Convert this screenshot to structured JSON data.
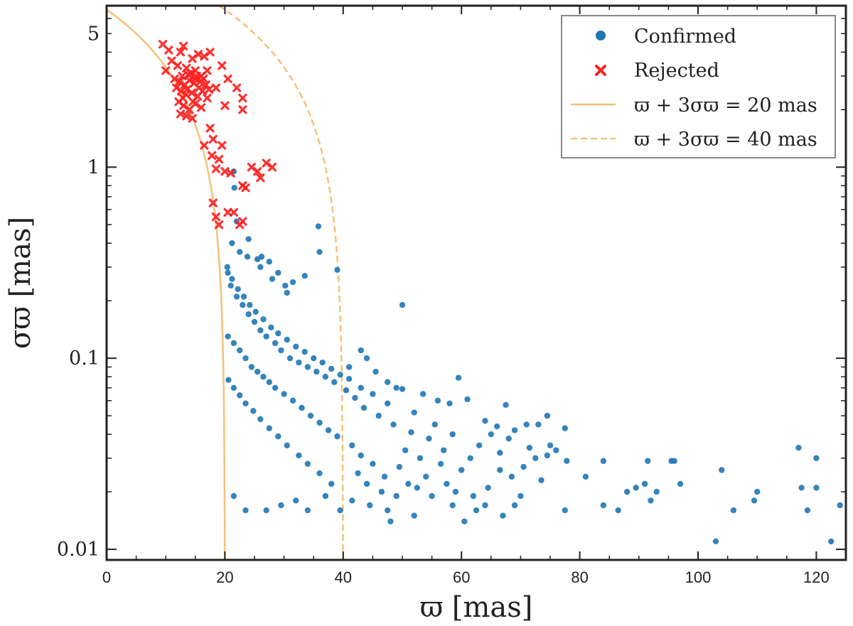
{
  "chart_data": {
    "type": "scatter",
    "title": "",
    "xlabel": "ϖ [mas]",
    "ylabel": "σϖ [mas]",
    "xlim": [
      0,
      125
    ],
    "ylim": [
      0.0088,
      7.0
    ],
    "yscale": "log",
    "x_ticks": [
      0,
      20,
      40,
      60,
      80,
      100,
      120
    ],
    "x_tick_labels": [
      "0",
      "20",
      "40",
      "60",
      "80",
      "100",
      "120"
    ],
    "y_ticks": [
      5,
      1,
      0.1,
      0.01
    ],
    "y_tick_labels": [
      "5",
      "1",
      "0.1",
      "0.01"
    ],
    "legend_position": "top-right",
    "colors": {
      "confirmed": "#1f77b4",
      "rejected": "#ff2020",
      "curve": "#f5c07a"
    },
    "series": [
      {
        "name": "Confirmed",
        "kind": "points",
        "marker": "circle",
        "legend_label": "Confirmed",
        "points": [
          [
            21.5,
            0.95
          ],
          [
            21.6,
            0.78
          ],
          [
            22.0,
            0.52
          ],
          [
            24.0,
            0.42
          ],
          [
            21.2,
            0.4
          ],
          [
            22.5,
            0.36
          ],
          [
            23.8,
            0.34
          ],
          [
            25.5,
            0.33
          ],
          [
            26.2,
            0.34
          ],
          [
            27.5,
            0.32
          ],
          [
            35.8,
            0.49
          ],
          [
            36.0,
            0.36
          ],
          [
            39.0,
            0.29
          ],
          [
            33.5,
            0.27
          ],
          [
            30.2,
            0.24
          ],
          [
            30.5,
            0.22
          ],
          [
            28.0,
            0.26
          ],
          [
            31.5,
            0.25
          ],
          [
            50.0,
            0.19
          ],
          [
            26.0,
            0.3
          ],
          [
            29.0,
            0.28
          ],
          [
            43.0,
            0.11
          ],
          [
            44.0,
            0.1
          ],
          [
            41.0,
            0.09
          ],
          [
            45.5,
            0.085
          ],
          [
            47.5,
            0.075
          ],
          [
            49.0,
            0.07
          ],
          [
            50.0,
            0.069
          ],
          [
            53.5,
            0.065
          ],
          [
            56.0,
            0.06
          ],
          [
            59.5,
            0.079
          ],
          [
            58.0,
            0.058
          ],
          [
            61.0,
            0.061
          ],
          [
            64.0,
            0.047
          ],
          [
            67.5,
            0.057
          ],
          [
            66.0,
            0.044
          ],
          [
            69.0,
            0.042
          ],
          [
            71.0,
            0.045
          ],
          [
            73.0,
            0.045
          ],
          [
            74.5,
            0.05
          ],
          [
            75.0,
            0.035
          ],
          [
            77.5,
            0.043
          ],
          [
            76.0,
            0.033
          ],
          [
            77.8,
            0.029
          ],
          [
            74.5,
            0.031
          ],
          [
            73.5,
            0.023
          ],
          [
            81.0,
            0.024
          ],
          [
            84.0,
            0.029
          ],
          [
            86.5,
            0.016
          ],
          [
            84.0,
            0.017
          ],
          [
            89.5,
            0.021
          ],
          [
            91.0,
            0.022
          ],
          [
            93.0,
            0.02
          ],
          [
            95.5,
            0.029
          ],
          [
            96.0,
            0.029
          ],
          [
            97.0,
            0.022
          ],
          [
            91.5,
            0.029
          ],
          [
            104.0,
            0.026
          ],
          [
            103.0,
            0.011
          ],
          [
            106.0,
            0.016
          ],
          [
            109.5,
            0.018
          ],
          [
            110.0,
            0.02
          ],
          [
            117.0,
            0.034
          ],
          [
            120.0,
            0.03
          ],
          [
            117.5,
            0.021
          ],
          [
            120.0,
            0.021
          ],
          [
            118.5,
            0.016
          ],
          [
            122.5,
            0.011
          ],
          [
            124.0,
            0.017
          ],
          [
            92.0,
            0.018
          ],
          [
            88.0,
            0.02
          ],
          [
            77.5,
            0.016
          ],
          [
            70.0,
            0.019
          ],
          [
            68.5,
            0.024
          ],
          [
            66.5,
            0.026
          ],
          [
            64.5,
            0.021
          ],
          [
            62.5,
            0.016
          ],
          [
            60.5,
            0.014
          ],
          [
            58.5,
            0.017
          ],
          [
            55.0,
            0.019
          ],
          [
            52.5,
            0.021
          ],
          [
            52.0,
            0.015
          ],
          [
            48.0,
            0.014
          ],
          [
            47.5,
            0.016
          ],
          [
            44.5,
            0.017
          ],
          [
            41.5,
            0.018
          ],
          [
            39.5,
            0.016
          ],
          [
            37.0,
            0.019
          ],
          [
            34.0,
            0.016
          ],
          [
            32.0,
            0.018
          ],
          [
            29.5,
            0.017
          ],
          [
            27.0,
            0.016
          ],
          [
            23.5,
            0.016
          ],
          [
            21.5,
            0.019
          ],
          [
            63.0,
            0.035
          ],
          [
            61.5,
            0.03
          ],
          [
            57.0,
            0.033
          ],
          [
            54.5,
            0.038
          ],
          [
            51.5,
            0.041
          ],
          [
            48.5,
            0.045
          ],
          [
            46.0,
            0.05
          ],
          [
            43.5,
            0.055
          ],
          [
            42.0,
            0.062
          ],
          [
            40.5,
            0.068
          ],
          [
            38.5,
            0.075
          ],
          [
            37.0,
            0.08
          ],
          [
            35.5,
            0.085
          ],
          [
            34.0,
            0.09
          ],
          [
            32.5,
            0.095
          ],
          [
            31.0,
            0.1
          ],
          [
            29.5,
            0.11
          ],
          [
            28.5,
            0.12
          ],
          [
            27.0,
            0.13
          ],
          [
            26.0,
            0.14
          ],
          [
            25.0,
            0.155
          ],
          [
            24.0,
            0.17
          ],
          [
            23.0,
            0.19
          ],
          [
            22.0,
            0.21
          ],
          [
            21.0,
            0.24
          ],
          [
            20.5,
            0.28
          ],
          [
            65.0,
            0.04
          ],
          [
            68.0,
            0.038
          ],
          [
            71.5,
            0.034
          ],
          [
            70.5,
            0.027
          ],
          [
            72.5,
            0.03
          ],
          [
            66.5,
            0.032
          ],
          [
            60.0,
            0.026
          ],
          [
            56.5,
            0.028
          ],
          [
            53.0,
            0.03
          ],
          [
            50.5,
            0.033
          ],
          [
            49.5,
            0.027
          ],
          [
            47.0,
            0.024
          ],
          [
            45.0,
            0.028
          ],
          [
            43.0,
            0.031
          ],
          [
            41.5,
            0.035
          ],
          [
            39.0,
            0.039
          ],
          [
            37.5,
            0.042
          ],
          [
            36.0,
            0.046
          ],
          [
            34.5,
            0.05
          ],
          [
            33.0,
            0.055
          ],
          [
            31.5,
            0.06
          ],
          [
            30.0,
            0.065
          ],
          [
            28.5,
            0.07
          ],
          [
            27.5,
            0.075
          ],
          [
            26.5,
            0.08
          ],
          [
            25.5,
            0.085
          ],
          [
            24.5,
            0.09
          ],
          [
            23.5,
            0.1
          ],
          [
            22.5,
            0.11
          ],
          [
            21.5,
            0.12
          ],
          [
            20.5,
            0.13
          ],
          [
            38.0,
            0.022
          ],
          [
            36.0,
            0.025
          ],
          [
            34.0,
            0.028
          ],
          [
            32.5,
            0.031
          ],
          [
            30.5,
            0.035
          ],
          [
            29.0,
            0.039
          ],
          [
            27.5,
            0.043
          ],
          [
            26.0,
            0.048
          ],
          [
            24.8,
            0.053
          ],
          [
            23.5,
            0.058
          ],
          [
            22.5,
            0.064
          ],
          [
            21.5,
            0.07
          ],
          [
            20.6,
            0.077
          ],
          [
            42.5,
            0.025
          ],
          [
            44.0,
            0.022
          ],
          [
            46.5,
            0.02
          ],
          [
            49.0,
            0.019
          ],
          [
            51.0,
            0.022
          ],
          [
            54.0,
            0.024
          ],
          [
            57.5,
            0.022
          ],
          [
            59.0,
            0.02
          ],
          [
            62.0,
            0.019
          ],
          [
            64.0,
            0.017
          ],
          [
            67.0,
            0.015
          ],
          [
            69.0,
            0.017
          ],
          [
            55.5,
            0.045
          ],
          [
            58.5,
            0.04
          ],
          [
            52.0,
            0.052
          ],
          [
            47.5,
            0.058
          ],
          [
            45.0,
            0.065
          ],
          [
            43.0,
            0.07
          ],
          [
            41.0,
            0.078
          ],
          [
            39.5,
            0.082
          ],
          [
            38.0,
            0.088
          ],
          [
            36.5,
            0.095
          ],
          [
            35.0,
            0.1
          ],
          [
            33.5,
            0.108
          ],
          [
            32.0,
            0.115
          ],
          [
            30.5,
            0.125
          ],
          [
            29.0,
            0.135
          ],
          [
            27.8,
            0.145
          ],
          [
            26.5,
            0.16
          ],
          [
            25.2,
            0.175
          ],
          [
            24.2,
            0.19
          ],
          [
            23.2,
            0.21
          ],
          [
            22.2,
            0.23
          ],
          [
            21.2,
            0.26
          ],
          [
            20.4,
            0.3
          ]
        ]
      },
      {
        "name": "Rejected",
        "kind": "points",
        "marker": "x",
        "legend_label": "Rejected",
        "points": [
          [
            9.5,
            4.4
          ],
          [
            10.5,
            4.1
          ],
          [
            12.5,
            4.0
          ],
          [
            13.0,
            4.3
          ],
          [
            14.5,
            3.7
          ],
          [
            15.5,
            3.9
          ],
          [
            16.5,
            3.8
          ],
          [
            17.5,
            4.0
          ],
          [
            11.0,
            3.6
          ],
          [
            12.0,
            3.4
          ],
          [
            13.5,
            3.3
          ],
          [
            14.2,
            3.1
          ],
          [
            15.0,
            3.2
          ],
          [
            16.0,
            3.0
          ],
          [
            17.0,
            3.2
          ],
          [
            10.0,
            3.2
          ],
          [
            11.5,
            2.9
          ],
          [
            12.3,
            2.8
          ],
          [
            13.2,
            2.7
          ],
          [
            14.0,
            2.85
          ],
          [
            14.8,
            2.75
          ],
          [
            15.6,
            2.6
          ],
          [
            16.4,
            2.9
          ],
          [
            12.8,
            3.0
          ],
          [
            13.8,
            3.05
          ],
          [
            15.2,
            3.0
          ],
          [
            11.8,
            2.6
          ],
          [
            12.6,
            2.5
          ],
          [
            13.4,
            2.4
          ],
          [
            14.4,
            2.45
          ],
          [
            15.4,
            2.35
          ],
          [
            16.2,
            2.5
          ],
          [
            12.2,
            2.2
          ],
          [
            13.0,
            2.1
          ],
          [
            14.0,
            2.0
          ],
          [
            15.0,
            2.15
          ],
          [
            16.0,
            2.05
          ],
          [
            17.0,
            2.3
          ],
          [
            12.5,
            1.9
          ],
          [
            13.5,
            1.85
          ],
          [
            14.5,
            1.8
          ],
          [
            20.5,
            2.9
          ],
          [
            22.0,
            2.6
          ],
          [
            23.0,
            2.3
          ],
          [
            23.0,
            2.0
          ],
          [
            20.0,
            2.1
          ],
          [
            17.5,
            1.6
          ],
          [
            18.0,
            1.4
          ],
          [
            19.5,
            1.3
          ],
          [
            16.5,
            1.3
          ],
          [
            17.8,
            1.15
          ],
          [
            19.0,
            1.1
          ],
          [
            18.5,
            0.98
          ],
          [
            20.0,
            0.95
          ],
          [
            21.0,
            0.93
          ],
          [
            24.5,
            1.0
          ],
          [
            25.5,
            0.95
          ],
          [
            27.0,
            1.05
          ],
          [
            28.0,
            1.0
          ],
          [
            26.0,
            0.88
          ],
          [
            23.5,
            0.78
          ],
          [
            23.0,
            0.8
          ],
          [
            20.5,
            0.58
          ],
          [
            21.5,
            0.58
          ],
          [
            22.5,
            0.5
          ],
          [
            23.0,
            0.52
          ],
          [
            18.5,
            0.55
          ],
          [
            19.0,
            0.5
          ],
          [
            18.0,
            0.65
          ],
          [
            15.0,
            2.9
          ],
          [
            16.8,
            2.7
          ],
          [
            14.6,
            2.2
          ],
          [
            13.6,
            2.55
          ],
          [
            12.9,
            2.3
          ],
          [
            15.8,
            2.8
          ],
          [
            17.3,
            2.55
          ],
          [
            18.5,
            2.6
          ],
          [
            19.5,
            3.4
          ]
        ]
      },
      {
        "name": "ϖ + 3σϖ = 20 mas",
        "kind": "curve",
        "style": "solid",
        "total": 20,
        "legend_label": "ϖ + 3σϖ = 20 mas"
      },
      {
        "name": "ϖ + 3σϖ = 40 mas",
        "kind": "curve",
        "style": "dashed",
        "total": 40,
        "legend_label": "ϖ + 3σϖ = 40 mas"
      }
    ]
  }
}
